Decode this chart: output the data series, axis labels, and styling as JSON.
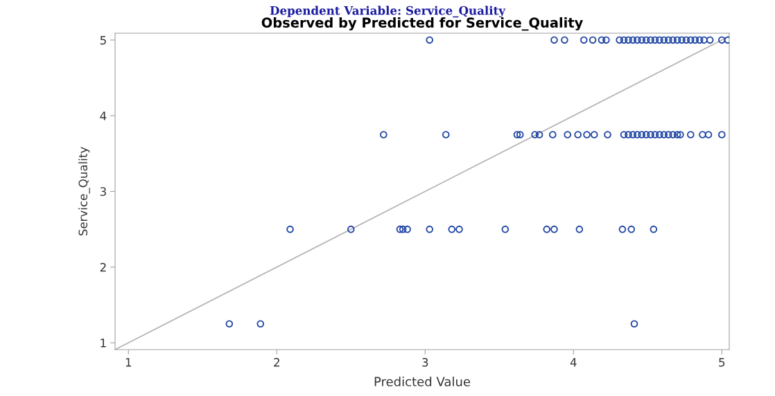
{
  "chart_data": {
    "type": "scatter",
    "title": "Observed by Predicted for Service_Quality",
    "xlabel": "Predicted Value",
    "ylabel": "Service_Quality",
    "annotations": [
      "Dependent Variable: Service_Quality"
    ],
    "series": [
      {
        "color": "#1f45a3",
        "marker": "circle",
        "x": [
          1.68,
          1.89,
          4.41,
          2.09,
          2.5,
          2.83,
          2.85,
          2.88,
          3.03,
          3.18,
          3.23,
          3.54,
          3.82,
          3.87,
          4.04,
          4.33,
          4.39,
          4.54,
          2.72,
          3.14,
          3.62,
          3.64,
          3.74,
          3.77,
          3.86,
          3.96,
          4.03,
          4.09,
          4.14,
          4.23,
          4.34,
          4.37,
          4.4,
          4.43,
          4.46,
          4.49,
          4.52,
          4.55,
          4.58,
          4.61,
          4.64,
          4.67,
          4.7,
          4.72,
          4.79,
          4.87,
          4.91,
          5.0,
          3.03,
          3.87,
          3.94,
          4.07,
          4.13,
          4.19,
          4.22,
          4.31,
          4.34,
          4.37,
          4.4,
          4.43,
          4.46,
          4.49,
          4.52,
          4.55,
          4.58,
          4.61,
          4.64,
          4.67,
          4.7,
          4.73,
          4.76,
          4.79,
          4.82,
          4.85,
          4.88,
          4.92,
          5.0,
          5.04
        ],
        "values": [
          1.25,
          1.25,
          1.25,
          2.5,
          2.5,
          2.5,
          2.5,
          2.5,
          2.5,
          2.5,
          2.5,
          2.5,
          2.5,
          2.5,
          2.5,
          2.5,
          2.5,
          2.5,
          3.75,
          3.75,
          3.75,
          3.75,
          3.75,
          3.75,
          3.75,
          3.75,
          3.75,
          3.75,
          3.75,
          3.75,
          3.75,
          3.75,
          3.75,
          3.75,
          3.75,
          3.75,
          3.75,
          3.75,
          3.75,
          3.75,
          3.75,
          3.75,
          3.75,
          3.75,
          3.75,
          3.75,
          3.75,
          3.75,
          5,
          5,
          5,
          5,
          5,
          5,
          5,
          5,
          5,
          5,
          5,
          5,
          5,
          5,
          5,
          5,
          5,
          5,
          5,
          5,
          5,
          5,
          5,
          5,
          5,
          5,
          5,
          5,
          5,
          5
        ]
      },
      {
        "type": "line",
        "color": "#b4b4b4",
        "line_style": "solid",
        "x": [
          0.91,
          5.05
        ],
        "values": [
          0.91,
          5.05
        ]
      }
    ],
    "xlim": [
      0.91,
      5.05
    ],
    "ylim": [
      0.91,
      5.09
    ],
    "xticks": [
      1,
      2,
      3,
      4,
      5
    ],
    "yticks": [
      1,
      2,
      3,
      4,
      5
    ],
    "grid": false,
    "legend": false
  }
}
